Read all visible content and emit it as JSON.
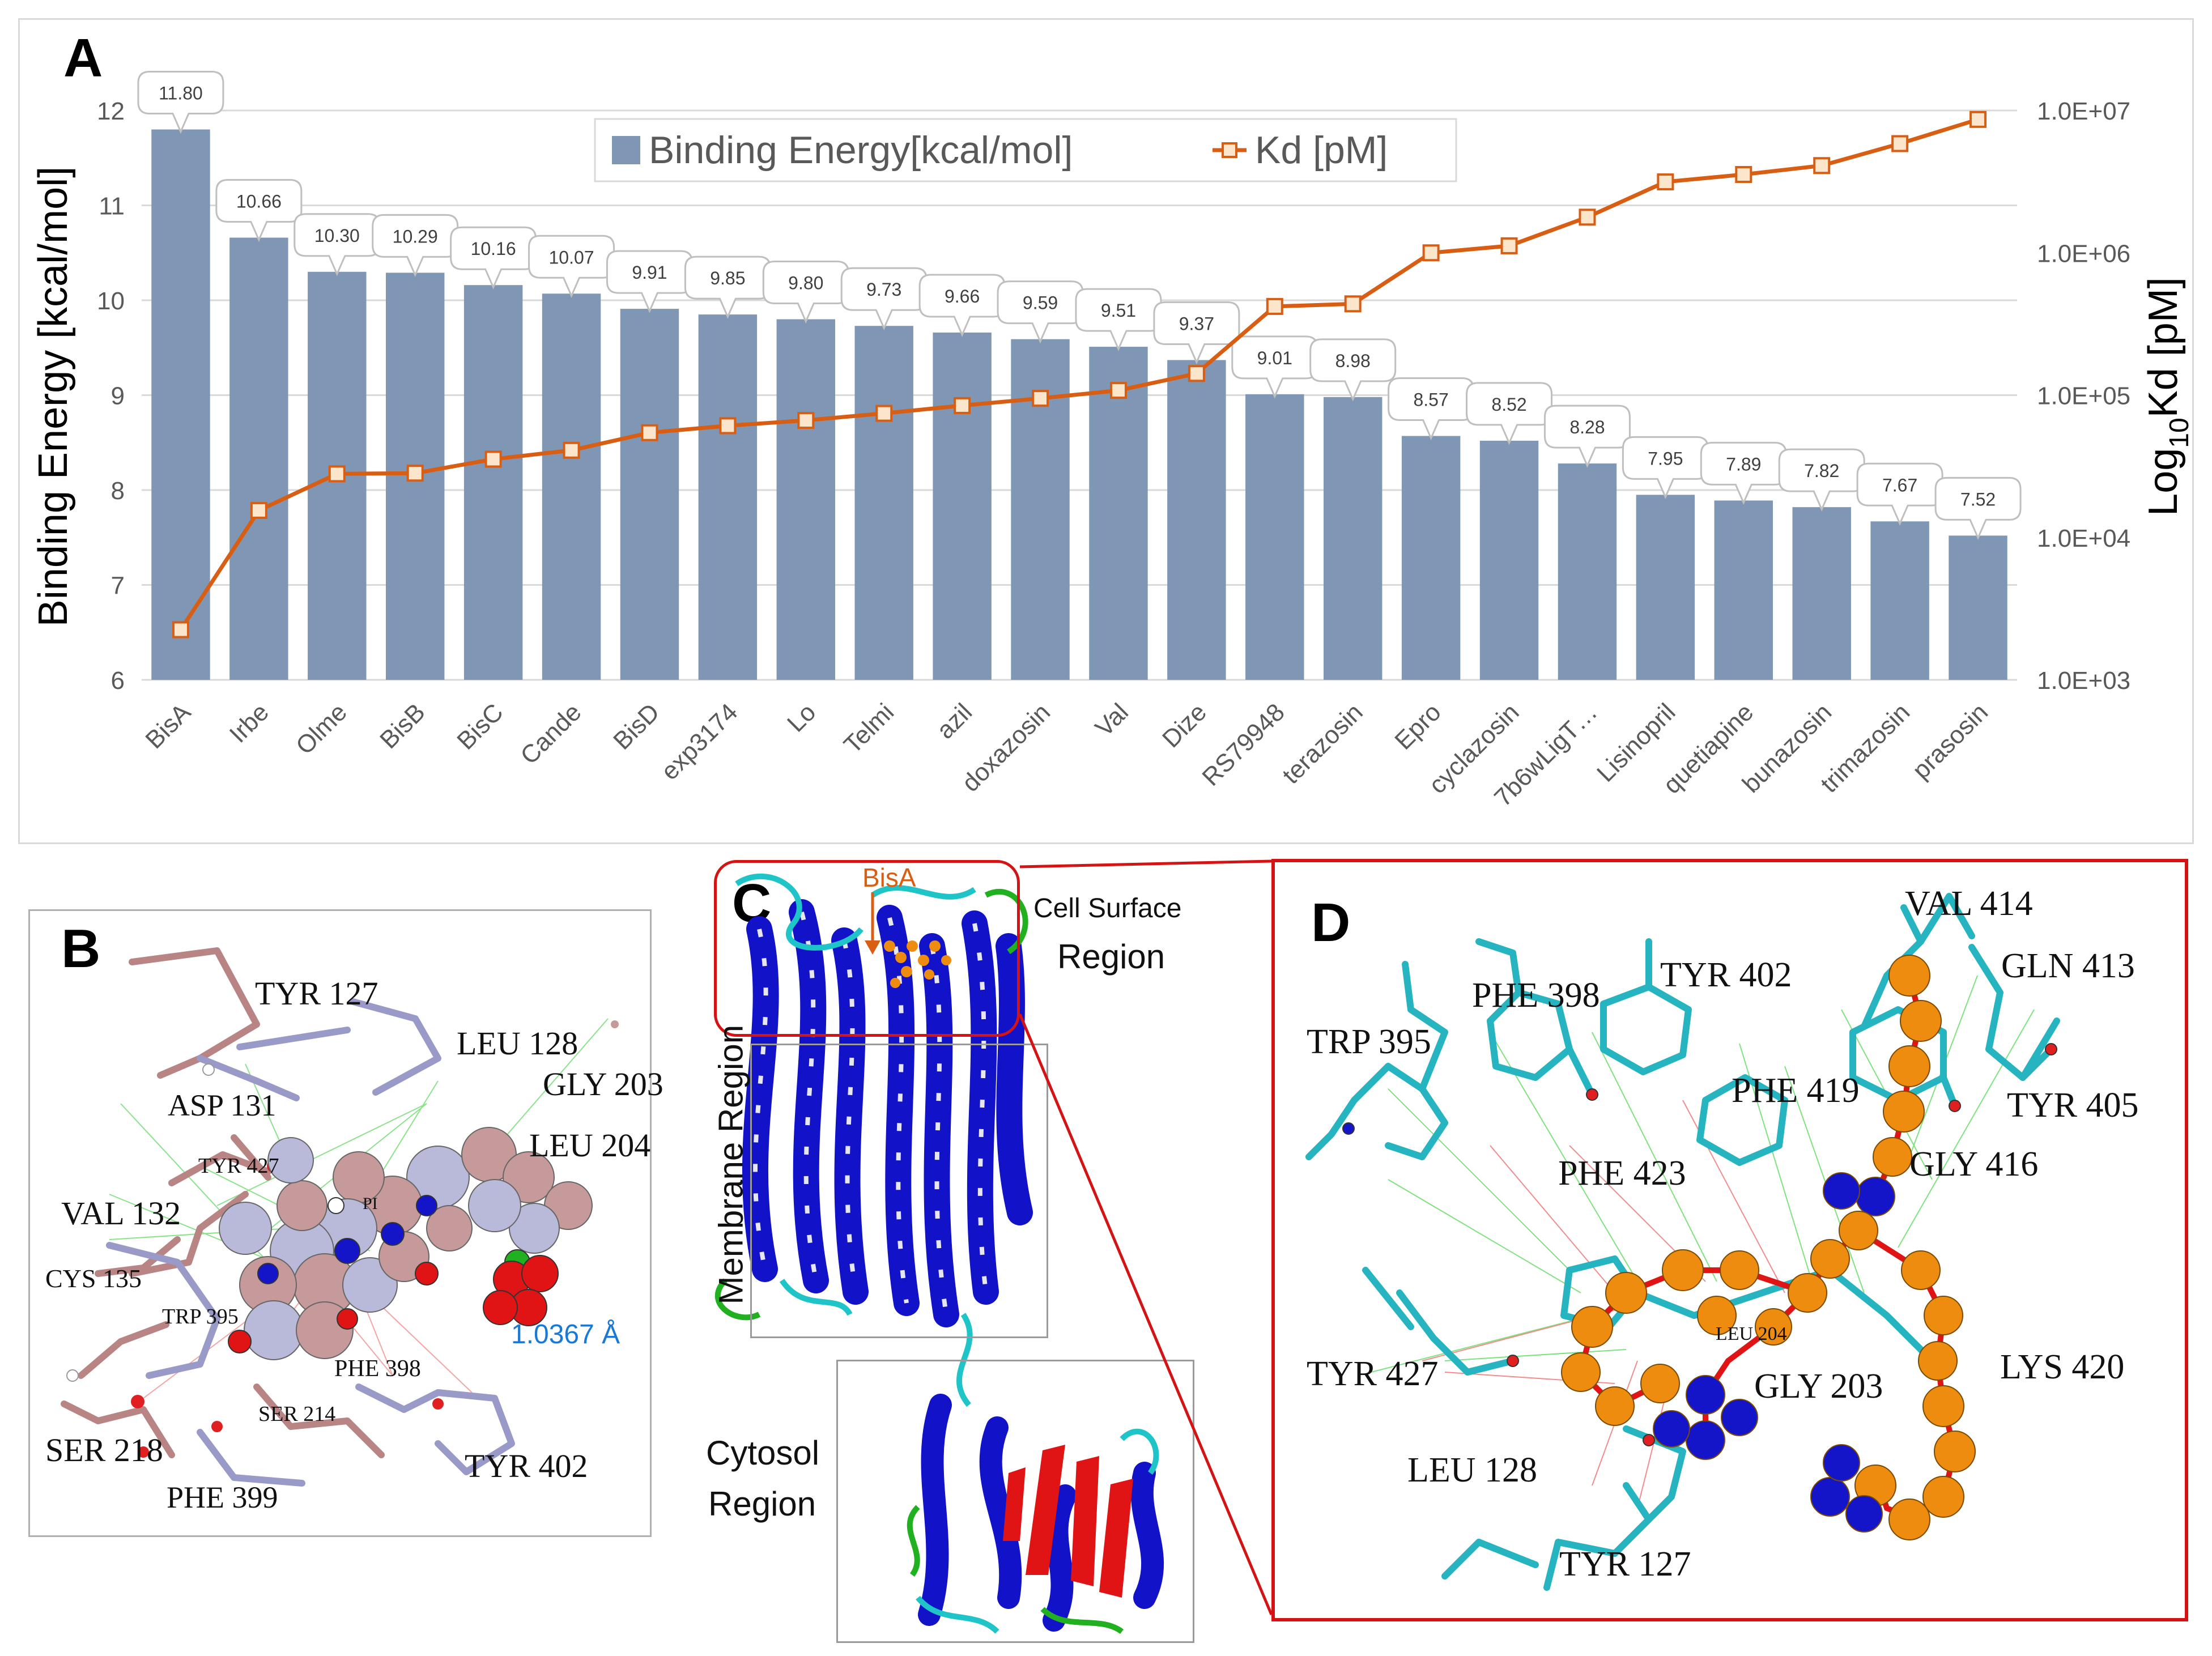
{
  "panels": {
    "a": "A",
    "b": "B",
    "c": "C",
    "d": "D"
  },
  "colors": {
    "bar": "#7f97b4",
    "line": "#d85e14",
    "marker_fill": "#fbe6cc",
    "ribbon_blue": "#1212c8",
    "ribbon_red": "#e01414",
    "ribbon_cyan": "#1fc4c8",
    "ribbon_green": "#20b020",
    "atom_orange": "#ee8c10",
    "atom_blue": "#1414c8",
    "residue_stick": "#26b5c0",
    "frame_red": "#d41414"
  },
  "chart_data": {
    "type": "bar",
    "title": "",
    "categories": [
      "BisA",
      "Irbe",
      "Olme",
      "BisB",
      "BisC",
      "Cande",
      "BisD",
      "exp3174",
      "Lo",
      "Telmi",
      "azil",
      "doxazosin",
      "Val",
      "Dize",
      "RS79948",
      "terazosin",
      "Epro",
      "cyclazosin",
      "7b6wLigT…",
      "Lisinopril",
      "quetiapine",
      "bunazosin",
      "trimazosin",
      "prasosin"
    ],
    "series": [
      {
        "name": "Binding Energy[kcal/mol]",
        "type": "bar",
        "axis": "left",
        "values": [
          11.8,
          10.66,
          10.3,
          10.29,
          10.16,
          10.07,
          9.91,
          9.85,
          9.8,
          9.73,
          9.66,
          9.59,
          9.51,
          9.37,
          9.01,
          8.98,
          8.57,
          8.52,
          8.28,
          7.95,
          7.89,
          7.82,
          7.67,
          7.52
        ],
        "labels": [
          "11.80",
          "10.66",
          "10.30",
          "10.29",
          "10.16",
          "10.07",
          "9.91",
          "9.85",
          "9.80",
          "9.73",
          "9.66",
          "9.59",
          "9.51",
          "9.37",
          "9.01",
          "8.98",
          "8.57",
          "8.52",
          "8.28",
          "7.95",
          "7.89",
          "7.82",
          "7.67",
          "7.52"
        ]
      },
      {
        "name": "Kd [pM]",
        "type": "line",
        "axis": "right",
        "values": [
          2250,
          15500,
          28000,
          28300,
          35500,
          41000,
          54500,
          61000,
          66500,
          74500,
          84500,
          95000,
          108000,
          142000,
          420000,
          438000,
          1000000,
          1120000,
          1780000,
          3150000,
          3550000,
          4100000,
          5850000,
          8650000
        ]
      }
    ],
    "ylabel": "Binding Energy [kcal/mol]",
    "y2label_base": "Log",
    "y2label_sub": "10",
    "y2label_rest": "Kd [pM]",
    "ylim": [
      6,
      12
    ],
    "y2lim": [
      1000,
      10000000
    ],
    "y2scale": "log",
    "yticks": [
      "6",
      "7",
      "8",
      "9",
      "10",
      "11",
      "12"
    ],
    "y2ticks": [
      "1.0E+03",
      "1.0E+04",
      "1.0E+05",
      "1.0E+06",
      "1.0E+07"
    ],
    "legend_position": "top-center",
    "grid": true
  },
  "panel_b": {
    "labels": [
      "TYR 127",
      "LEU 128",
      "GLY 203",
      "LEU 204",
      "ASP 131",
      "TYR 427",
      "VAL 132",
      "CYS 135",
      "TRP 395",
      "PHE 398",
      "SER 214",
      "SER 218",
      "PHE 399",
      "TYR 402",
      "PI"
    ],
    "distance": "1.0367 Å"
  },
  "panel_c": {
    "ligand": "BisA",
    "cell_surface_line1": "Cell Surface",
    "cell_surface_line2": "Region",
    "membrane": "Membrane Region",
    "cytosol_line1": "Cytosol",
    "cytosol_line2": "Region"
  },
  "panel_d": {
    "labels": [
      "VAL 414",
      "GLN 413",
      "PHE 398",
      "TYR 402",
      "TRP 395",
      "PHE 419",
      "TYR 405",
      "PHE 423",
      "GLY 416",
      "LEU 204",
      "TYR 427",
      "LYS 420",
      "GLY 203",
      "LEU 128",
      "TYR 127"
    ]
  }
}
